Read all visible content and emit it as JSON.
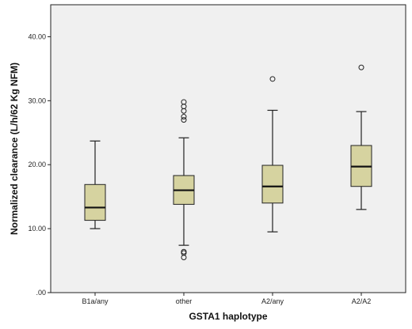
{
  "chart_data": {
    "type": "box",
    "title": "",
    "xlabel": "GSTA1 haplotype",
    "ylabel": "Normalized clearance (L/h/62 Kg NFM)",
    "ylim": [
      0,
      45
    ],
    "y_ticks": [
      0,
      10,
      20,
      30,
      40
    ],
    "y_tick_labels": [
      ".00",
      "10.00",
      "20.00",
      "30.00",
      "40.00"
    ],
    "grid": false,
    "categories": [
      "B1a/any",
      "other",
      "A2/any",
      "A2/A2"
    ],
    "boxes": [
      {
        "category": "B1a/any",
        "whisker_low": 10.0,
        "q1": 11.3,
        "median": 13.3,
        "q3": 16.9,
        "whisker_high": 23.7,
        "outliers": []
      },
      {
        "category": "other",
        "whisker_low": 7.4,
        "q1": 13.8,
        "median": 16.0,
        "q3": 18.3,
        "whisker_high": 24.2,
        "outliers": [
          5.5,
          6.2,
          6.4,
          27.0,
          27.5,
          28.4,
          29.1,
          29.8
        ]
      },
      {
        "category": "A2/any",
        "whisker_low": 9.5,
        "q1": 14.0,
        "median": 16.6,
        "q3": 19.9,
        "whisker_high": 28.5,
        "outliers": [
          33.4
        ]
      },
      {
        "category": "A2/A2",
        "whisker_low": 13.0,
        "q1": 16.6,
        "median": 19.7,
        "q3": 23.0,
        "whisker_high": 28.3,
        "outliers": [
          35.2
        ]
      }
    ],
    "colors": {
      "plot_background": "#f0f0f0",
      "box_fill": "#d6d3a0",
      "box_stroke": "#222222",
      "median": "#111111"
    }
  }
}
